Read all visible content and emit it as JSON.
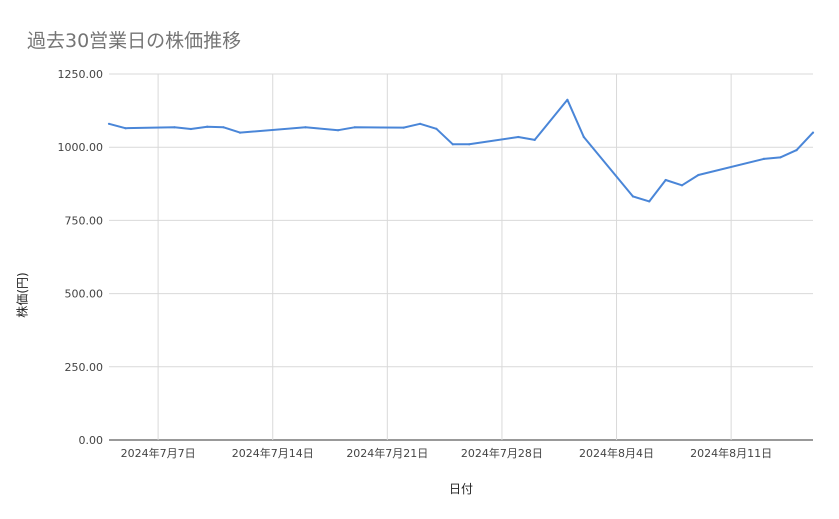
{
  "chart_data": {
    "type": "line",
    "title": "過去30営業日の株価推移",
    "xlabel": "日付",
    "ylabel": "株価(円)",
    "ylim": [
      0,
      1250
    ],
    "yticks": [
      "0.00",
      "250.00",
      "500.00",
      "750.00",
      "1000.00",
      "1250.00"
    ],
    "xticks": [
      {
        "label": "2024年7月7日",
        "date": "2024-07-07"
      },
      {
        "label": "2024年7月14日",
        "date": "2024-07-14"
      },
      {
        "label": "2024年7月21日",
        "date": "2024-07-21"
      },
      {
        "label": "2024年7月28日",
        "date": "2024-07-28"
      },
      {
        "label": "2024年8月4日",
        "date": "2024-08-04"
      },
      {
        "label": "2024年8月11日",
        "date": "2024-08-11"
      }
    ],
    "grid": true,
    "series": [
      {
        "color": "#4a86d8",
        "points": [
          {
            "x": "2024-07-04",
            "y": 1080
          },
          {
            "x": "2024-07-05",
            "y": 1065
          },
          {
            "x": "2024-07-08",
            "y": 1068
          },
          {
            "x": "2024-07-09",
            "y": 1062
          },
          {
            "x": "2024-07-10",
            "y": 1070
          },
          {
            "x": "2024-07-11",
            "y": 1068
          },
          {
            "x": "2024-07-12",
            "y": 1050
          },
          {
            "x": "2024-07-16",
            "y": 1068
          },
          {
            "x": "2024-07-18",
            "y": 1058
          },
          {
            "x": "2024-07-19",
            "y": 1068
          },
          {
            "x": "2024-07-22",
            "y": 1067
          },
          {
            "x": "2024-07-23",
            "y": 1080
          },
          {
            "x": "2024-07-24",
            "y": 1063
          },
          {
            "x": "2024-07-25",
            "y": 1010
          },
          {
            "x": "2024-07-26",
            "y": 1010
          },
          {
            "x": "2024-07-29",
            "y": 1035
          },
          {
            "x": "2024-07-30",
            "y": 1025
          },
          {
            "x": "2024-08-01",
            "y": 1162
          },
          {
            "x": "2024-08-02",
            "y": 1035
          },
          {
            "x": "2024-08-05",
            "y": 832
          },
          {
            "x": "2024-08-06",
            "y": 815
          },
          {
            "x": "2024-08-07",
            "y": 888
          },
          {
            "x": "2024-08-08",
            "y": 870
          },
          {
            "x": "2024-08-09",
            "y": 905
          },
          {
            "x": "2024-08-13",
            "y": 960
          },
          {
            "x": "2024-08-14",
            "y": 965
          },
          {
            "x": "2024-08-15",
            "y": 990
          },
          {
            "x": "2024-08-16",
            "y": 1050
          }
        ]
      }
    ]
  }
}
